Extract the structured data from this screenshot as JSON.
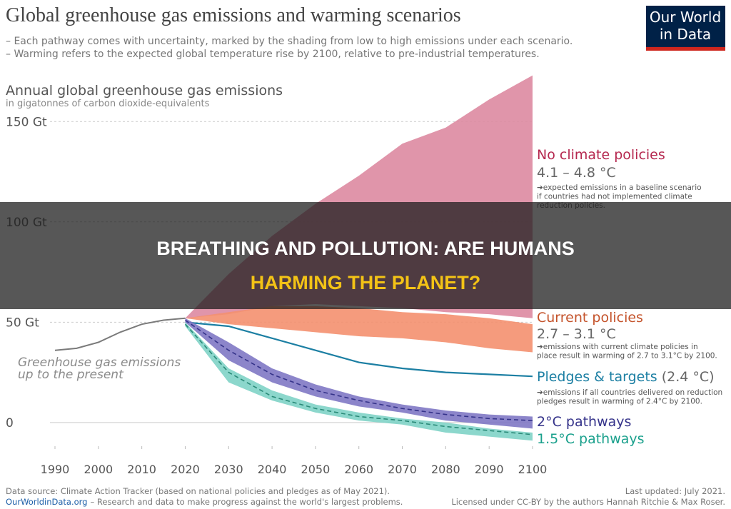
{
  "header": {
    "title": "Global greenhouse gas emissions and warming scenarios",
    "subtitle": [
      "– Each pathway comes with uncertainty, marked by the shading from low to high emissions under each scenario.",
      "– Warming refers to the expected global temperature rise by 2100, relative to pre-industrial temperatures."
    ],
    "logo": [
      "Our World",
      "in Data"
    ]
  },
  "chart_data": {
    "type": "area",
    "y_title": "Annual global greenhouse gas emissions",
    "y_subtitle": "in gigatonnes of carbon dioxide-equivalents",
    "xlim": [
      1990,
      2100
    ],
    "ylim": [
      -10,
      175
    ],
    "xticks": [
      1990,
      2000,
      2010,
      2020,
      2030,
      2040,
      2050,
      2060,
      2070,
      2080,
      2090,
      2100
    ],
    "yticks": [
      0,
      {
        "value": 50,
        "label": "50 Gt"
      },
      {
        "value": 100,
        "label": "100 Gt"
      },
      {
        "value": 150,
        "label": "150 Gt"
      }
    ],
    "history": {
      "name": [
        "Greenhouse gas emissions",
        "up to the present"
      ],
      "color": "#7a7a7a",
      "x": [
        1990,
        1995,
        2000,
        2005,
        2010,
        2015,
        2020
      ],
      "values": [
        36,
        37,
        40,
        45,
        49,
        51,
        52
      ]
    },
    "x": [
      2020,
      2030,
      2040,
      2050,
      2060,
      2070,
      2080,
      2090,
      2100
    ],
    "series": [
      {
        "name": "No climate policies",
        "temperature": "4.1 – 4.8 °C",
        "note": [
          "➔expected emissions in a baseline scenario",
          "if countries had not implemented climate",
          "reduction policies."
        ],
        "color": "#dd8aa1",
        "label_color": "#b5284f",
        "high": [
          52,
          74,
          93,
          109,
          123,
          139,
          147,
          161,
          173
        ],
        "low": [
          52,
          54,
          58,
          59,
          58,
          57,
          55,
          54,
          52
        ]
      },
      {
        "name": "Current policies",
        "temperature": "2.7 – 3.1 °C",
        "note": [
          "➔emissions with current climate policies in",
          "place result in warming of 2.7 to 3.1°C by 2100."
        ],
        "color": "#f4906f",
        "label_color": "#c4532b",
        "high": [
          52,
          55,
          58,
          58,
          57,
          55,
          54,
          52,
          49
        ],
        "low": [
          52,
          49,
          47,
          45,
          43,
          42,
          40,
          37,
          35
        ]
      },
      {
        "name": "Pledges & targets",
        "temperature": "(2.4 °C)",
        "note": [
          "➔emissions if all countries delivered on reduction",
          "pledges result in warming of 2.4°C by 2100."
        ],
        "color": "#1c7fa3",
        "label_color": "#1c7fa3",
        "values": [
          50,
          48,
          42,
          36,
          30,
          27,
          25,
          24,
          23
        ]
      },
      {
        "name": "2°C pathways",
        "color": "#7f78c4",
        "line_color": "#35338a",
        "label_color": "#35338a",
        "high": [
          52,
          40,
          27,
          19,
          13,
          9,
          6,
          4,
          3
        ],
        "low": [
          50,
          31,
          20,
          13,
          8,
          5,
          1,
          -1,
          -3
        ],
        "values": [
          51,
          36,
          24,
          16,
          11,
          7,
          4,
          2,
          1
        ]
      },
      {
        "name": "1.5°C pathways",
        "color": "#7fd3c7",
        "line_color": "#2a8a78",
        "label_color": "#1aa08c",
        "high": [
          50,
          27,
          16,
          9,
          5,
          2,
          0,
          -3,
          -5
        ],
        "low": [
          48,
          20,
          11,
          5,
          1,
          -1,
          -5,
          -7,
          -9
        ],
        "values": [
          49,
          25,
          13,
          7,
          3,
          1,
          -2,
          -4,
          -6
        ]
      }
    ]
  },
  "footer": {
    "source": "Data source: Climate Action Tracker (based on national policies and pledges as of May 2021).",
    "link": "OurWorldinData.org",
    "tagline": "– Research and data to make progress against the world's largest problems.",
    "updated": "Last updated: July 2021.",
    "license": "Licensed under CC-BY by the authors Hannah Ritchie & Max Roser."
  },
  "banner": [
    "BREATHING AND POLLUTION: ARE HUMANS",
    "HARMING THE PLANET?"
  ]
}
